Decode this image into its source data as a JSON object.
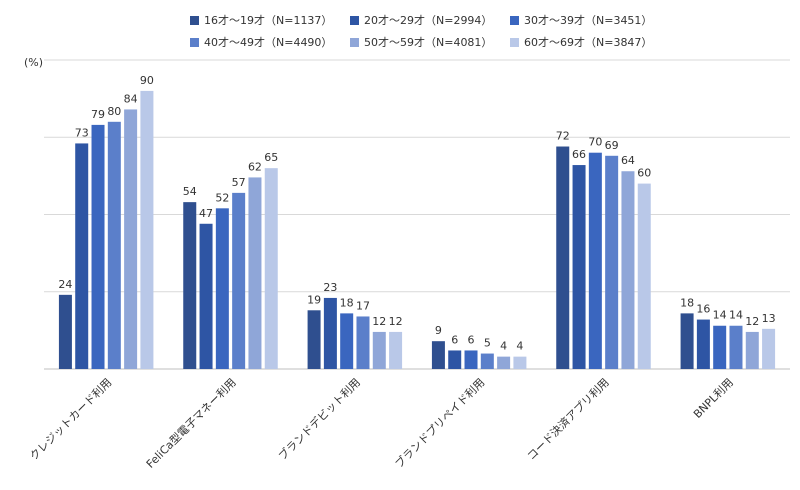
{
  "chart_data": {
    "type": "bar",
    "unit_label": "(%)",
    "ylim": [
      0,
      100
    ],
    "grid": true,
    "legend_position": "top",
    "categories": [
      "クレジットカード利用",
      "FeliCa型電子マネー利用",
      "ブランドデビット利用",
      "ブランドプリペイド利用",
      "コード決済アプリ利用",
      "BNPL利用"
    ],
    "series": [
      {
        "name": "16才～19才（N=1137）",
        "color": "#2f4f8f",
        "values": [
          24,
          54,
          19,
          9,
          72,
          18
        ]
      },
      {
        "name": "20才～29才（N=2994）",
        "color": "#2e55a4",
        "values": [
          73,
          47,
          23,
          6,
          66,
          16
        ]
      },
      {
        "name": "30才～39才（N=3451）",
        "color": "#3a66bf",
        "values": [
          79,
          52,
          18,
          6,
          70,
          14
        ]
      },
      {
        "name": "40才～49才（N=4490）",
        "color": "#5b7fca",
        "values": [
          80,
          57,
          17,
          5,
          69,
          14
        ]
      },
      {
        "name": "50才～59才（N=4081）",
        "color": "#8fa6d8",
        "values": [
          84,
          62,
          12,
          4,
          64,
          12
        ]
      },
      {
        "name": "60才～69才（N=3847）",
        "color": "#b9c8e8",
        "values": [
          90,
          65,
          12,
          4,
          60,
          13
        ]
      }
    ]
  }
}
